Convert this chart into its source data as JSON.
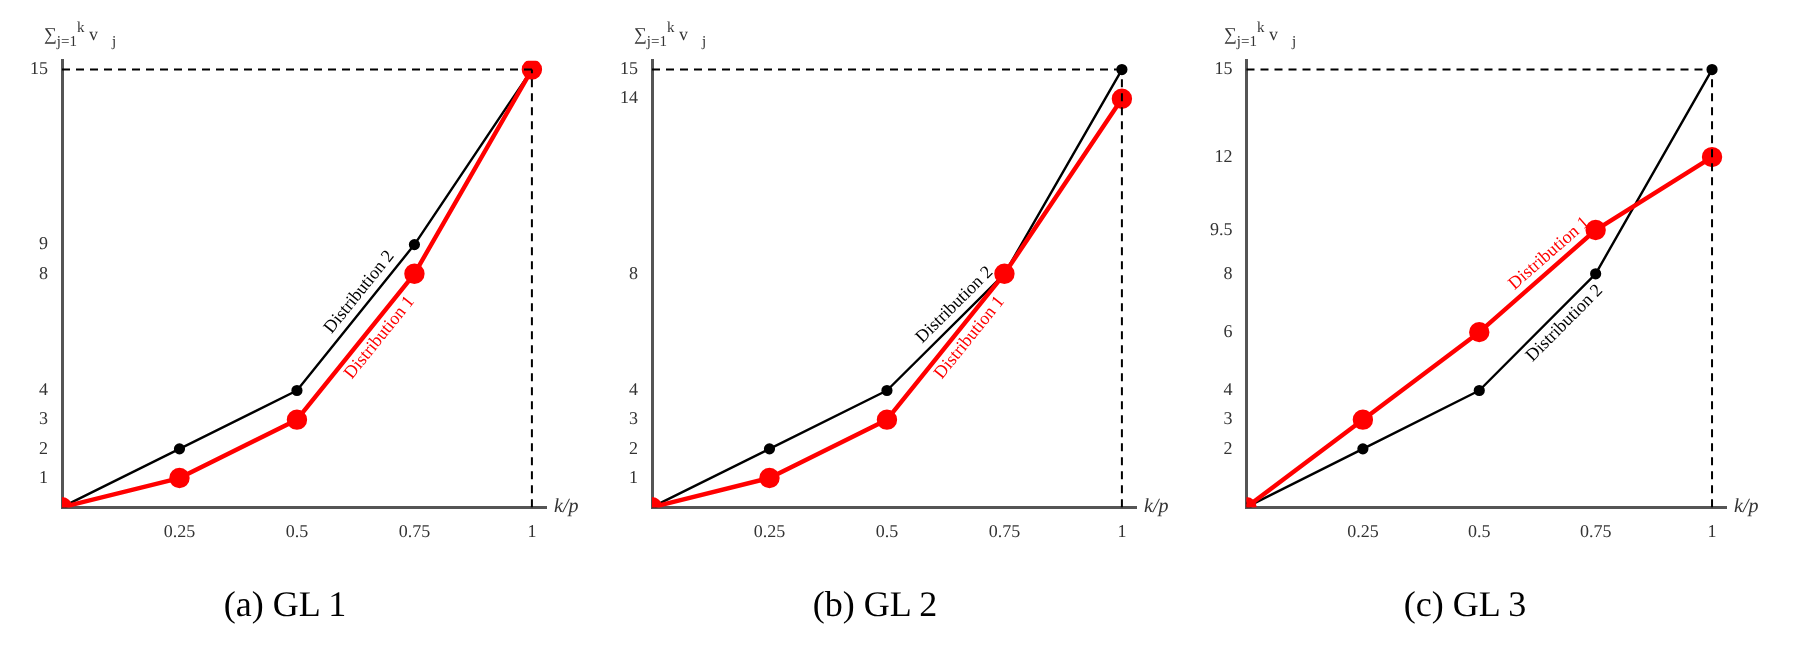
{
  "chart_data": [
    {
      "type": "line",
      "title": "(a) GL 1",
      "xlabel": "k/p",
      "ylabel": "∑$_{j=1}$$^{k}$ v⃗$_{j}$",
      "x": [
        0,
        0.25,
        0.5,
        0.75,
        1
      ],
      "xlim": [
        0,
        1.03
      ],
      "ylim": [
        0,
        15.3
      ],
      "xticks": [
        0.25,
        0.5,
        0.75,
        1
      ],
      "yticks": [
        1,
        2,
        3,
        4,
        8,
        9,
        15
      ],
      "grid": false,
      "legend": false,
      "marker": "circle",
      "line_style": "solid",
      "series": [
        {
          "name": "Distribution 1",
          "color": "#ff0000",
          "values": [
            0,
            1,
            3,
            8,
            15
          ]
        },
        {
          "name": "Distribution 2",
          "color": "#000000",
          "values": [
            0,
            2,
            4,
            9,
            15
          ]
        }
      ],
      "ref_lines": [
        {
          "axis": "y",
          "value": 15,
          "color": "#000000",
          "line_style": "dashed"
        },
        {
          "axis": "x",
          "value": 1,
          "color": "#000000",
          "line_style": "dashed"
        }
      ]
    },
    {
      "type": "line",
      "title": "(b) GL 2",
      "xlabel": "k/p",
      "ylabel": "∑$_{j=1}$$^{k}$ v⃗$_{j}$",
      "x": [
        0,
        0.25,
        0.5,
        0.75,
        1
      ],
      "xlim": [
        0,
        1.03
      ],
      "ylim": [
        0,
        15.3
      ],
      "xticks": [
        0.25,
        0.5,
        0.75,
        1
      ],
      "yticks": [
        1,
        2,
        3,
        4,
        8,
        14,
        15
      ],
      "grid": false,
      "legend": false,
      "marker": "circle",
      "line_style": "solid",
      "series": [
        {
          "name": "Distribution 1",
          "color": "#ff0000",
          "values": [
            0,
            1,
            3,
            8,
            14
          ]
        },
        {
          "name": "Distribution 2",
          "color": "#000000",
          "values": [
            0,
            2,
            4,
            8,
            15
          ]
        }
      ],
      "ref_lines": [
        {
          "axis": "y",
          "value": 15,
          "color": "#000000",
          "line_style": "dashed"
        },
        {
          "axis": "x",
          "value": 1,
          "color": "#000000",
          "line_style": "dashed"
        }
      ]
    },
    {
      "type": "line",
      "title": "(c) GL 3",
      "xlabel": "k/p",
      "ylabel": "∑$_{j=1}$$^{k}$ v⃗$_{j}$",
      "x": [
        0,
        0.25,
        0.5,
        0.75,
        1
      ],
      "xlim": [
        0,
        1.03
      ],
      "ylim": [
        0,
        15.3
      ],
      "xticks": [
        0.25,
        0.5,
        0.75,
        1
      ],
      "yticks": [
        2,
        3,
        4,
        6,
        8,
        9.5,
        12,
        15
      ],
      "grid": false,
      "legend": false,
      "marker": "circle",
      "line_style": "solid",
      "series": [
        {
          "name": "Distribution 1",
          "color": "#ff0000",
          "values": [
            0,
            3,
            6,
            9.5,
            12
          ]
        },
        {
          "name": "Distribution 2",
          "color": "#000000",
          "values": [
            0,
            2,
            4,
            8,
            15
          ]
        }
      ],
      "ref_lines": [
        {
          "axis": "y",
          "value": 15,
          "color": "#000000",
          "line_style": "dashed"
        },
        {
          "axis": "x",
          "value": 1,
          "color": "#000000",
          "line_style": "dashed"
        }
      ]
    }
  ]
}
